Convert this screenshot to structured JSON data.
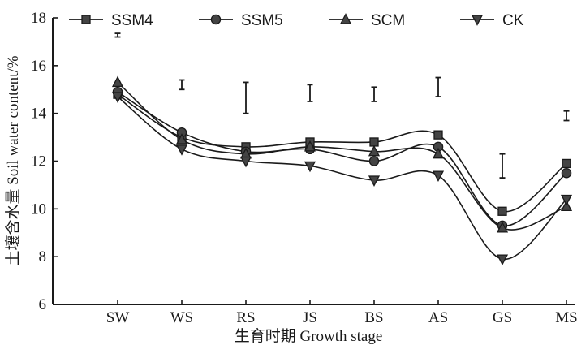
{
  "chart_data": {
    "type": "line",
    "title": "",
    "xlabel": "生育时期 Growth stage",
    "ylabel": "土壤含水量 Soil water content/%",
    "categories": [
      "SW",
      "WS",
      "RS",
      "JS",
      "BS",
      "AS",
      "GS",
      "MS"
    ],
    "ylim": [
      6,
      18
    ],
    "yticks": [
      "6",
      "8",
      "10",
      "12",
      "14",
      "16",
      "18"
    ],
    "grid": false,
    "legend": "top",
    "smooth": true,
    "series": [
      {
        "name": "SSM4",
        "marker": "square",
        "values": [
          14.8,
          13.0,
          12.6,
          12.8,
          12.8,
          13.1,
          9.9,
          11.9
        ]
      },
      {
        "name": "SSM5",
        "marker": "circle",
        "values": [
          14.9,
          13.2,
          12.4,
          12.5,
          12.0,
          12.6,
          9.3,
          11.5
        ]
      },
      {
        "name": "SCM",
        "marker": "triangle-up",
        "values": [
          15.3,
          12.9,
          12.3,
          12.6,
          12.4,
          12.3,
          9.2,
          10.1
        ]
      },
      {
        "name": "CK",
        "marker": "triangle-down",
        "values": [
          14.7,
          12.5,
          12.0,
          11.8,
          11.2,
          11.4,
          7.9,
          10.4
        ]
      }
    ],
    "error_bars": [
      {
        "category": "SW",
        "low": 17.2,
        "high": 17.35
      },
      {
        "category": "WS",
        "low": 15.0,
        "high": 15.4
      },
      {
        "category": "RS",
        "low": 14.0,
        "high": 15.3
      },
      {
        "category": "JS",
        "low": 14.5,
        "high": 15.2
      },
      {
        "category": "BS",
        "low": 14.5,
        "high": 15.1
      },
      {
        "category": "AS",
        "low": 14.7,
        "high": 15.5
      },
      {
        "category": "GS",
        "low": 11.3,
        "high": 12.3
      },
      {
        "category": "MS",
        "low": 13.7,
        "high": 14.1
      }
    ],
    "colors": {
      "line": "#1a1a1a",
      "marker_fill": "#444444",
      "axis": "#1a1a1a"
    }
  }
}
